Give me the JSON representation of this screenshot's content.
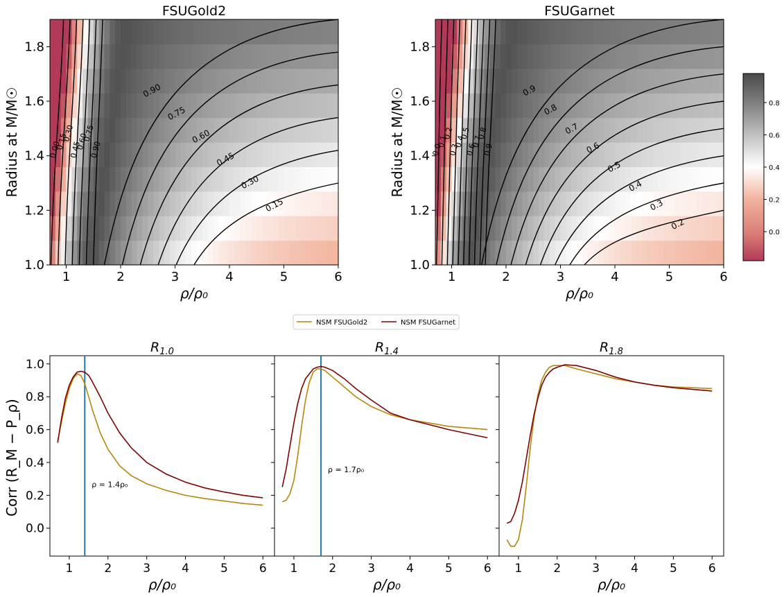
{
  "chart_data": [
    {
      "type": "heatmap",
      "title": "FSUGold2",
      "xlabel": "ρ/ρ₀",
      "ylabel": "Radius at M/M☉",
      "xlim": [
        0.7,
        6
      ],
      "ylim": [
        1.0,
        1.9
      ],
      "xticks": [
        "1",
        "2",
        "3",
        "4",
        "5",
        "6"
      ],
      "yticks": [
        "1.0",
        "1.2",
        "1.4",
        "1.6",
        "1.8"
      ],
      "contour_levels": [
        "0.00",
        "0.15",
        "0.30",
        "0.45",
        "0.60",
        "0.75",
        "0.90",
        "0.90",
        "0.75",
        "0.60",
        "0.45",
        "0.30",
        "0.15"
      ],
      "radius_rows": [
        1.0,
        1.05,
        1.1,
        1.15,
        1.2,
        1.25,
        1.3,
        1.35,
        1.4,
        1.45,
        1.5,
        1.55,
        1.6,
        1.65,
        1.7,
        1.75,
        1.8,
        1.85,
        1.9
      ]
    },
    {
      "type": "heatmap",
      "title": "FSUGarnet",
      "xlabel": "ρ/ρ₀",
      "ylabel": "Radius at M/M☉",
      "xlim": [
        0.7,
        6
      ],
      "ylim": [
        1.0,
        1.9
      ],
      "xticks": [
        "1",
        "2",
        "3",
        "4",
        "5",
        "6"
      ],
      "yticks": [
        "1.0",
        "1.2",
        "1.4",
        "1.6",
        "1.8"
      ],
      "contour_levels": [
        "0.0",
        "0.1",
        "0.2",
        "0.3",
        "0.4",
        "0.5",
        "0.6",
        "0.7",
        "0.8",
        "0.9",
        "0.9",
        "0.8",
        "0.7",
        "0.6",
        "0.5",
        "0.4",
        "0.3",
        "0.2"
      ],
      "colorbar_ticks": [
        "0.8",
        "0.6",
        "0.4",
        "0.2",
        "0.0"
      ],
      "colorbar_range": [
        -0.18,
        0.98
      ]
    },
    {
      "type": "line",
      "title": "R_1.0",
      "xlabel": "ρ/ρ₀",
      "ylabel": "Corr (R_M − P_ρ)",
      "ylim": [
        -0.17,
        1.05
      ],
      "xlim": [
        0.5,
        6.3
      ],
      "vline": 1.4,
      "annotation": "ρ = 1.4ρ₀",
      "series": [
        {
          "name": "NSM FSUGold2",
          "x": [
            0.7,
            0.8,
            0.9,
            1.0,
            1.1,
            1.2,
            1.3,
            1.4,
            1.5,
            1.6,
            1.8,
            2.0,
            2.3,
            2.6,
            3.0,
            3.5,
            4.0,
            4.5,
            5.0,
            5.5,
            6.0
          ],
          "y": [
            0.53,
            0.65,
            0.76,
            0.85,
            0.91,
            0.94,
            0.93,
            0.88,
            0.8,
            0.72,
            0.58,
            0.48,
            0.38,
            0.32,
            0.27,
            0.23,
            0.2,
            0.18,
            0.165,
            0.15,
            0.14
          ]
        },
        {
          "name": "NSM FSUGarnet",
          "x": [
            0.7,
            0.8,
            0.9,
            1.0,
            1.1,
            1.2,
            1.3,
            1.4,
            1.5,
            1.6,
            1.8,
            2.0,
            2.3,
            2.6,
            3.0,
            3.5,
            4.0,
            4.5,
            5.0,
            5.5,
            6.0
          ],
          "y": [
            0.52,
            0.67,
            0.79,
            0.87,
            0.92,
            0.95,
            0.955,
            0.95,
            0.93,
            0.89,
            0.8,
            0.7,
            0.58,
            0.49,
            0.4,
            0.33,
            0.28,
            0.245,
            0.22,
            0.2,
            0.185
          ]
        }
      ]
    },
    {
      "type": "line",
      "title": "R_1.4",
      "xlabel": "ρ/ρ₀",
      "ylim": [
        -0.17,
        1.05
      ],
      "xlim": [
        0.5,
        6.3
      ],
      "vline": 1.7,
      "annotation": "ρ = 1.7ρ₀",
      "series": [
        {
          "name": "NSM FSUGold2",
          "x": [
            0.7,
            0.8,
            0.9,
            1.0,
            1.1,
            1.2,
            1.3,
            1.4,
            1.5,
            1.6,
            1.7,
            1.8,
            2.0,
            2.3,
            2.6,
            3.0,
            3.5,
            4.0,
            4.5,
            5.0,
            5.5,
            6.0
          ],
          "y": [
            0.16,
            0.17,
            0.21,
            0.29,
            0.44,
            0.62,
            0.78,
            0.89,
            0.95,
            0.97,
            0.97,
            0.96,
            0.92,
            0.86,
            0.8,
            0.74,
            0.69,
            0.66,
            0.64,
            0.62,
            0.61,
            0.6
          ]
        },
        {
          "name": "NSM FSUGarnet",
          "x": [
            0.7,
            0.8,
            0.9,
            1.0,
            1.1,
            1.2,
            1.3,
            1.4,
            1.5,
            1.6,
            1.7,
            1.8,
            2.0,
            2.3,
            2.6,
            3.0,
            3.5,
            4.0,
            4.5,
            5.0,
            5.5,
            6.0
          ],
          "y": [
            0.25,
            0.36,
            0.5,
            0.64,
            0.76,
            0.85,
            0.91,
            0.94,
            0.97,
            0.98,
            0.985,
            0.98,
            0.96,
            0.91,
            0.85,
            0.78,
            0.7,
            0.66,
            0.63,
            0.6,
            0.575,
            0.55
          ]
        }
      ]
    },
    {
      "type": "line",
      "title": "R_1.8",
      "xlabel": "ρ/ρ₀",
      "ylim": [
        -0.17,
        1.05
      ],
      "xlim": [
        0.5,
        6.3
      ],
      "series": [
        {
          "name": "NSM FSUGold2",
          "x": [
            0.7,
            0.8,
            0.9,
            1.0,
            1.1,
            1.2,
            1.3,
            1.4,
            1.5,
            1.6,
            1.7,
            1.8,
            1.9,
            2.0,
            2.2,
            2.5,
            3.0,
            3.5,
            4.0,
            4.5,
            5.0,
            5.5,
            6.0
          ],
          "y": [
            -0.07,
            -0.11,
            -0.11,
            -0.07,
            0.05,
            0.25,
            0.48,
            0.67,
            0.81,
            0.9,
            0.95,
            0.98,
            0.99,
            0.99,
            0.99,
            0.97,
            0.94,
            0.91,
            0.89,
            0.87,
            0.86,
            0.855,
            0.85
          ]
        },
        {
          "name": "NSM FSUGarnet",
          "x": [
            0.7,
            0.8,
            0.9,
            1.0,
            1.1,
            1.2,
            1.3,
            1.4,
            1.5,
            1.6,
            1.7,
            1.8,
            1.9,
            2.0,
            2.2,
            2.5,
            3.0,
            3.5,
            4.0,
            4.5,
            5.0,
            5.5,
            6.0
          ],
          "y": [
            0.03,
            0.04,
            0.09,
            0.17,
            0.28,
            0.42,
            0.56,
            0.69,
            0.79,
            0.87,
            0.92,
            0.95,
            0.97,
            0.98,
            0.995,
            0.99,
            0.96,
            0.92,
            0.89,
            0.87,
            0.855,
            0.845,
            0.835
          ]
        }
      ]
    }
  ],
  "legend": {
    "items": [
      {
        "label": "NSM FSUGold2",
        "color": "#b8860b"
      },
      {
        "label": "NSM FSUGarnet",
        "color": "#800000"
      }
    ]
  },
  "colors": {
    "gold2": "#b8860b",
    "garnet": "#800000",
    "vline": "#1f77b4"
  }
}
